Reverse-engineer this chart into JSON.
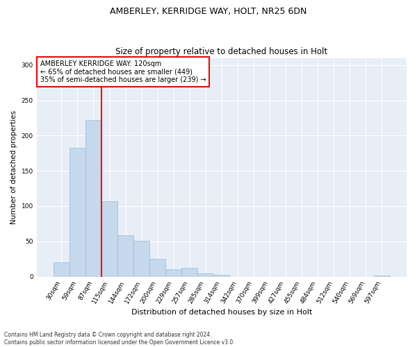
{
  "title1": "AMBERLEY, KERRIDGE WAY, HOLT, NR25 6DN",
  "title2": "Size of property relative to detached houses in Holt",
  "xlabel": "Distribution of detached houses by size in Holt",
  "ylabel": "Number of detached properties",
  "footnote": "Contains HM Land Registry data © Crown copyright and database right 2024.\nContains public sector information licensed under the Open Government Licence v3.0.",
  "bin_labels": [
    "30sqm",
    "59sqm",
    "87sqm",
    "115sqm",
    "144sqm",
    "172sqm",
    "200sqm",
    "229sqm",
    "257sqm",
    "285sqm",
    "314sqm",
    "342sqm",
    "370sqm",
    "399sqm",
    "427sqm",
    "455sqm",
    "484sqm",
    "512sqm",
    "540sqm",
    "569sqm",
    "597sqm"
  ],
  "bar_values": [
    20,
    183,
    222,
    107,
    59,
    51,
    25,
    10,
    12,
    5,
    3,
    0,
    0,
    0,
    0,
    0,
    0,
    0,
    0,
    0,
    2
  ],
  "bar_color": "#c5d8ec",
  "bar_edgecolor": "#9dbcd8",
  "bg_color": "#e8eef6",
  "vline_color": "red",
  "vline_x_idx": 3,
  "annotation_text": "AMBERLEY KERRIDGE WAY: 120sqm\n← 65% of detached houses are smaller (449)\n35% of semi-detached houses are larger (239) →",
  "annotation_box_color": "white",
  "annotation_box_edgecolor": "red",
  "ylim": [
    0,
    310
  ],
  "yticks": [
    0,
    50,
    100,
    150,
    200,
    250,
    300
  ],
  "title1_fontsize": 9,
  "title2_fontsize": 8.5,
  "xlabel_fontsize": 8,
  "ylabel_fontsize": 7.5,
  "tick_fontsize": 6.5,
  "annot_fontsize": 7
}
